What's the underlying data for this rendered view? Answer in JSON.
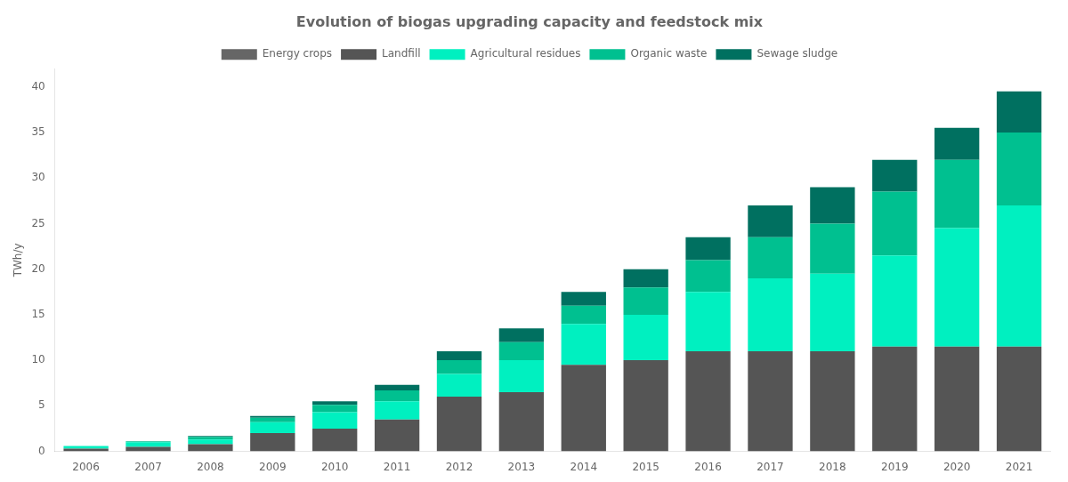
{
  "chart_data": {
    "type": "bar",
    "title": "Evolution of biogas upgrading capacity and feedstock mix",
    "ylabel": "TWh/y",
    "categories": [
      "2006",
      "2007",
      "2008",
      "2009",
      "2010",
      "2011",
      "2012",
      "2013",
      "2014",
      "2015",
      "2016",
      "2017",
      "2018",
      "2019",
      "2020",
      "2021"
    ],
    "series": [
      {
        "name": "Energy crops",
        "color": "#666666",
        "values": [
          0.0,
          0.0,
          0.0,
          0.0,
          0.0,
          0.0,
          0.0,
          0.0,
          0.0,
          0.0,
          0.0,
          0.0,
          0.0,
          0.0,
          0.0,
          0.0
        ]
      },
      {
        "name": "Landfill",
        "color": "#555555",
        "values": [
          0.3,
          0.5,
          0.8,
          2.0,
          2.5,
          3.5,
          6.0,
          6.5,
          9.5,
          10.0,
          11.0,
          11.0,
          11.0,
          11.5,
          11.5,
          11.5
        ]
      },
      {
        "name": "Agricultural residues",
        "color": "#00f0c0",
        "values": [
          0.3,
          0.5,
          0.5,
          1.2,
          1.8,
          2.0,
          2.5,
          3.5,
          4.5,
          5.0,
          6.5,
          8.0,
          8.5,
          10.0,
          13.0,
          15.5
        ]
      },
      {
        "name": "Organic waste",
        "color": "#00c090",
        "values": [
          0.0,
          0.1,
          0.3,
          0.5,
          0.8,
          1.2,
          1.5,
          2.0,
          2.0,
          3.0,
          3.5,
          4.5,
          5.5,
          7.0,
          7.5,
          8.0
        ]
      },
      {
        "name": "Sewage sludge",
        "color": "#007060",
        "values": [
          0.0,
          0.0,
          0.1,
          0.2,
          0.4,
          0.6,
          1.0,
          1.5,
          1.5,
          2.0,
          2.5,
          3.5,
          4.0,
          3.5,
          3.5,
          4.5
        ]
      }
    ],
    "stacked": true,
    "ylim": [
      0,
      42
    ],
    "yticks": [
      0,
      5,
      10,
      15,
      20,
      25,
      30,
      35,
      40
    ],
    "grid": false,
    "legend": "top"
  }
}
